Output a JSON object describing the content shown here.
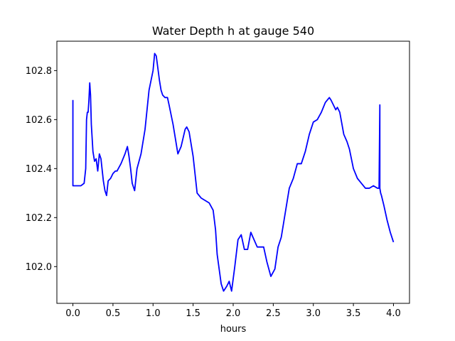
{
  "chart_data": {
    "type": "line",
    "title": "Water Depth h at gauge 540",
    "xlabel": "hours",
    "ylabel": "",
    "xlim": [
      -0.2,
      4.2
    ],
    "ylim": [
      101.85,
      102.92
    ],
    "xticks": [
      0.0,
      0.5,
      1.0,
      1.5,
      2.0,
      2.5,
      3.0,
      3.5,
      4.0
    ],
    "xtick_labels": [
      "0.0",
      "0.5",
      "1.0",
      "1.5",
      "2.0",
      "2.5",
      "3.0",
      "3.5",
      "4.0"
    ],
    "yticks": [
      102.0,
      102.2,
      102.4,
      102.6,
      102.8
    ],
    "ytick_labels": [
      "102.0",
      "102.2",
      "102.4",
      "102.6",
      "102.8"
    ],
    "grid": false,
    "line_color": "#0000ff",
    "series": [
      {
        "x": [
          0.0,
          0.0,
          0.005,
          0.1,
          0.14,
          0.16,
          0.17,
          0.18,
          0.19,
          0.2,
          0.21,
          0.22,
          0.23,
          0.25,
          0.27,
          0.29,
          0.31,
          0.33,
          0.35,
          0.37,
          0.38,
          0.39,
          0.4,
          0.42,
          0.44,
          0.47,
          0.5,
          0.53,
          0.55,
          0.6,
          0.65,
          0.68,
          0.7,
          0.72,
          0.74,
          0.77,
          0.8,
          0.85,
          0.9,
          0.95,
          1.0,
          1.02,
          1.04,
          1.06,
          1.08,
          1.1,
          1.12,
          1.15,
          1.18,
          1.2,
          1.25,
          1.28,
          1.31,
          1.35,
          1.4,
          1.42,
          1.45,
          1.5,
          1.55,
          1.6,
          1.7,
          1.75,
          1.78,
          1.8,
          1.85,
          1.88,
          1.92,
          1.95,
          1.98,
          2.02,
          2.06,
          2.1,
          2.14,
          2.18,
          2.22,
          2.26,
          2.3,
          2.34,
          2.38,
          2.42,
          2.47,
          2.52,
          2.56,
          2.6,
          2.65,
          2.7,
          2.75,
          2.8,
          2.85,
          2.9,
          2.95,
          3.0,
          3.05,
          3.1,
          3.15,
          3.2,
          3.22,
          3.25,
          3.28,
          3.3,
          3.33,
          3.38,
          3.42,
          3.45,
          3.5,
          3.55,
          3.6,
          3.65,
          3.7,
          3.75,
          3.8,
          3.82,
          3.83,
          3.83,
          3.84,
          3.85,
          3.88,
          3.92,
          3.96,
          4.0
        ],
        "y": [
          102.68,
          102.33,
          102.33,
          102.33,
          102.34,
          102.4,
          102.6,
          102.63,
          102.63,
          102.68,
          102.75,
          102.7,
          102.58,
          102.47,
          102.43,
          102.44,
          102.39,
          102.46,
          102.44,
          102.38,
          102.35,
          102.33,
          102.31,
          102.29,
          102.35,
          102.36,
          102.38,
          102.39,
          102.39,
          102.42,
          102.46,
          102.49,
          102.45,
          102.4,
          102.34,
          102.31,
          102.4,
          102.46,
          102.56,
          102.72,
          102.8,
          102.87,
          102.86,
          102.81,
          102.76,
          102.72,
          102.7,
          102.69,
          102.69,
          102.66,
          102.58,
          102.52,
          102.46,
          102.49,
          102.56,
          102.57,
          102.55,
          102.45,
          102.3,
          102.28,
          102.26,
          102.23,
          102.15,
          102.05,
          101.93,
          101.9,
          101.92,
          101.94,
          101.9,
          102.0,
          102.11,
          102.13,
          102.07,
          102.07,
          102.14,
          102.11,
          102.08,
          102.08,
          102.08,
          102.02,
          101.96,
          101.99,
          102.08,
          102.12,
          102.22,
          102.32,
          102.36,
          102.42,
          102.42,
          102.47,
          102.54,
          102.59,
          102.6,
          102.63,
          102.67,
          102.69,
          102.68,
          102.66,
          102.64,
          102.65,
          102.63,
          102.54,
          102.51,
          102.48,
          102.4,
          102.36,
          102.34,
          102.32,
          102.32,
          102.33,
          102.32,
          102.32,
          102.66,
          102.32,
          102.3,
          102.29,
          102.25,
          102.19,
          102.14,
          102.1
        ]
      }
    ]
  }
}
